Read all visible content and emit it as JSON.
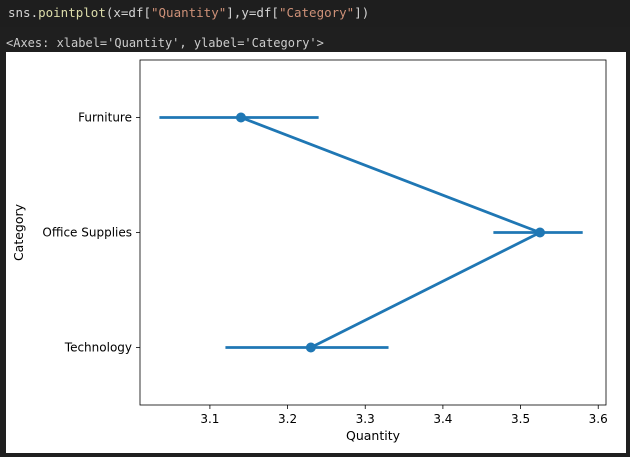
{
  "cell": {
    "code_prefix": "sns.",
    "code_fn": "pointplot",
    "code_part1": "(x=df[",
    "code_str1": "\"Quantity\"",
    "code_part2": "],y=df[",
    "code_str2": "\"Category\"",
    "code_part3": "])",
    "output_repr": "<Axes: xlabel='Quantity', ylabel='Category'>"
  },
  "colors": {
    "series": "#1f77b4"
  },
  "chart_data": {
    "type": "point",
    "categories": [
      "Furniture",
      "Office Supplies",
      "Technology"
    ],
    "x": [
      3.14,
      3.525,
      3.23
    ],
    "ci_low": [
      3.035,
      3.465,
      3.12
    ],
    "ci_high": [
      3.24,
      3.58,
      3.33
    ],
    "xlabel": "Quantity",
    "ylabel": "Category",
    "xlim": [
      3.01,
      3.61
    ],
    "xticks": [
      3.1,
      3.2,
      3.3,
      3.4,
      3.5,
      3.6
    ],
    "xtick_labels": [
      "3.1",
      "3.2",
      "3.3",
      "3.4",
      "3.5",
      "3.6"
    ],
    "grid": false,
    "legend": "none"
  }
}
